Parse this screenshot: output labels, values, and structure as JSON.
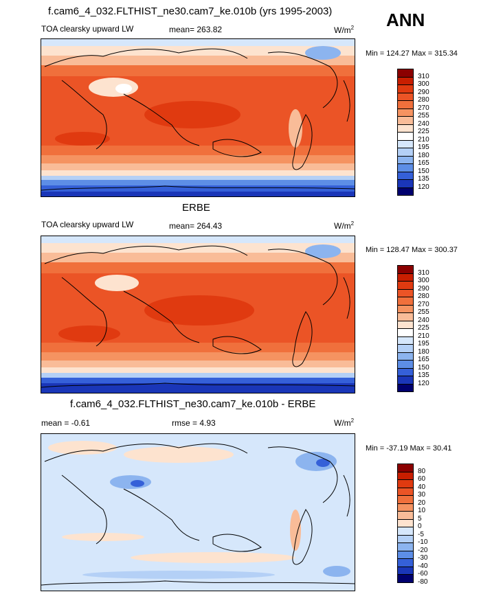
{
  "header": {
    "season": "ANN"
  },
  "panels": [
    {
      "title": "f.cam6_4_032.FLTHIST_ne30.cam7_ke.010b (yrs 1995-2003)",
      "variable": "TOA clearsky upward LW",
      "stat": "mean=  263.82",
      "units": "W/m",
      "units_sup": "2",
      "minmax": "Min = 124.27 Max = 315.34"
    },
    {
      "title": "ERBE",
      "variable": "TOA clearsky upward LW",
      "stat": "mean=  264.43",
      "units": "W/m",
      "units_sup": "2",
      "minmax": "Min = 128.47 Max = 300.37"
    },
    {
      "title": "f.cam6_4_032.FLTHIST_ne30.cam7_ke.010b - ERBE",
      "variable": "mean =  -0.61",
      "stat": "rmse =   4.93",
      "units": "W/m",
      "units_sup": "2",
      "minmax": "Min = -37.19 Max =  30.41"
    }
  ],
  "colorbars": {
    "absolute": {
      "levels": [
        "310",
        "300",
        "290",
        "280",
        "270",
        "255",
        "240",
        "225",
        "210",
        "195",
        "180",
        "165",
        "150",
        "135",
        "120"
      ],
      "colors": [
        "#8b0000",
        "#c81e00",
        "#e03a10",
        "#eb5426",
        "#f0703c",
        "#f59361",
        "#f9bc98",
        "#fde3cf",
        "#ffffff",
        "#d6e7fb",
        "#b4d0f6",
        "#8cb4ef",
        "#5d8ee6",
        "#3560d8",
        "#1a36b8",
        "#00006e"
      ]
    },
    "difference": {
      "levels": [
        "80",
        "60",
        "40",
        "30",
        "20",
        "10",
        "5",
        "0",
        "-5",
        "-10",
        "-20",
        "-30",
        "-40",
        "-60",
        "-80"
      ],
      "colors": [
        "#8b0000",
        "#c81e00",
        "#e03a10",
        "#eb5426",
        "#f0703c",
        "#f59361",
        "#f9bc98",
        "#fde3cf",
        "#d6e7fb",
        "#b4d0f6",
        "#8cb4ef",
        "#5d8ee6",
        "#3560d8",
        "#1a36b8",
        "#00006e"
      ]
    }
  },
  "chart_data": [
    {
      "type": "heatmap",
      "title": "f.cam6_4_032.FLTHIST_ne30.cam7_ke.010b (yrs 1995-2003)",
      "variable": "TOA clearsky upward LW",
      "units": "W/m2",
      "mean": 263.82,
      "min": 124.27,
      "max": 315.34,
      "contour_levels": [
        120,
        135,
        150,
        165,
        180,
        195,
        210,
        225,
        240,
        255,
        270,
        280,
        290,
        300,
        310
      ]
    },
    {
      "type": "heatmap",
      "title": "ERBE",
      "variable": "TOA clearsky upward LW",
      "units": "W/m2",
      "mean": 264.43,
      "min": 128.47,
      "max": 300.37,
      "contour_levels": [
        120,
        135,
        150,
        165,
        180,
        195,
        210,
        225,
        240,
        255,
        270,
        280,
        290,
        300,
        310
      ]
    },
    {
      "type": "heatmap",
      "title": "f.cam6_4_032.FLTHIST_ne30.cam7_ke.010b - ERBE",
      "units": "W/m2",
      "mean": -0.61,
      "rmse": 4.93,
      "min": -37.19,
      "max": 30.41,
      "contour_levels": [
        -80,
        -60,
        -40,
        -30,
        -20,
        -10,
        -5,
        0,
        5,
        10,
        20,
        30,
        40,
        60,
        80
      ]
    }
  ]
}
